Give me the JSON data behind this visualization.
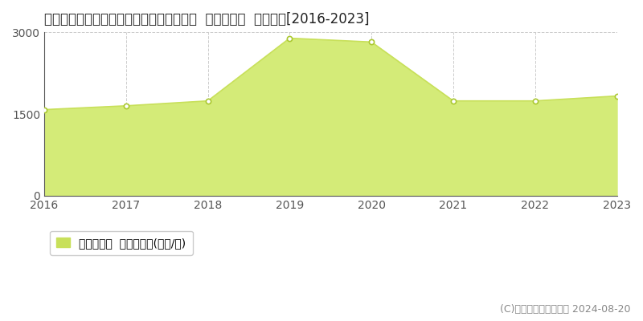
{
  "title": "東京都新宿区歌舞伎町一丁目１８番１１外  基準地価格  地価推移[2016-2023]",
  "years": [
    2016,
    2017,
    2018,
    2019,
    2020,
    2021,
    2022,
    2023
  ],
  "values": [
    1580,
    1650,
    1740,
    2890,
    2820,
    1740,
    1740,
    1830
  ],
  "ylim": [
    0,
    3000
  ],
  "yticks": [
    0,
    1500,
    3000
  ],
  "line_color": "#c8e05a",
  "fill_color": "#d4eb78",
  "fill_alpha": 1.0,
  "marker_color": "#ffffff",
  "marker_edge_color": "#aac830",
  "grid_color": "#cccccc",
  "bg_color": "#ffffff",
  "plot_bg_color": "#ffffff",
  "legend_label": "基準地価格  平均坪単価(万円/坪)",
  "legend_color": "#c8e05a",
  "copyright_text": "(C)土地価格ドットコム 2024-08-20",
  "title_fontsize": 12,
  "tick_fontsize": 10,
  "legend_fontsize": 10,
  "copyright_fontsize": 9
}
